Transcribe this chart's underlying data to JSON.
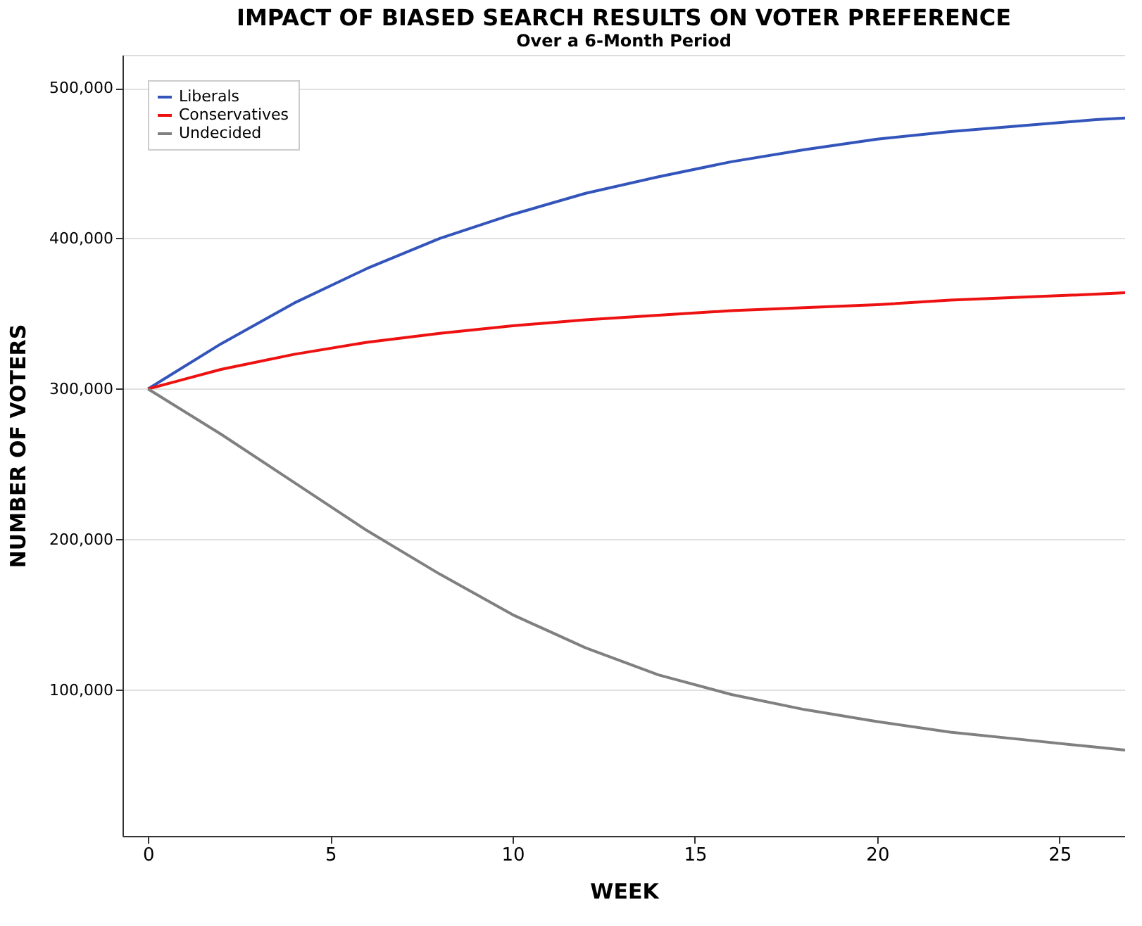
{
  "chart_data": {
    "type": "line",
    "title": "IMPACT OF BIASED SEARCH RESULTS ON VOTER PREFERENCE",
    "subtitle": "Over a 6-Month Period",
    "xlabel": "WEEK",
    "ylabel": "NUMBER OF VOTERS",
    "x": [
      0,
      2,
      4,
      6,
      8,
      10,
      12,
      14,
      16,
      18,
      20,
      22,
      24,
      26,
      26.8
    ],
    "series": [
      {
        "name": "Liberals",
        "color": "#3355bb",
        "values": [
          300000,
          330000,
          357000,
          380000,
          400000,
          416000,
          430000,
          441000,
          451000,
          459000,
          466000,
          471000,
          475000,
          479000,
          480000
        ]
      },
      {
        "name": "Conservatives",
        "color": "#ee1111",
        "values": [
          300000,
          313000,
          323000,
          331000,
          337000,
          342000,
          346000,
          349000,
          352000,
          354000,
          356000,
          359000,
          361000,
          363000,
          364000
        ]
      },
      {
        "name": "Undecided",
        "color": "#808080",
        "values": [
          300000,
          270000,
          238000,
          206000,
          177000,
          150000,
          128000,
          110000,
          97000,
          87000,
          79000,
          72000,
          67000,
          62000,
          60000
        ]
      }
    ],
    "xlim": [
      -0.7,
      26.8
    ],
    "xticks": [
      0,
      5,
      10,
      15,
      20,
      25
    ],
    "ylim": [
      3000,
      522000
    ],
    "yticks": [
      {
        "value": 100000,
        "label": "100,000"
      },
      {
        "value": 200000,
        "label": "200,000"
      },
      {
        "value": 300000,
        "label": "300,000"
      },
      {
        "value": 400000,
        "label": "400,000"
      },
      {
        "value": 500000,
        "label": "500,000"
      }
    ],
    "grid": "y",
    "legend": "top left",
    "marker": "none",
    "line_style": "solid"
  }
}
